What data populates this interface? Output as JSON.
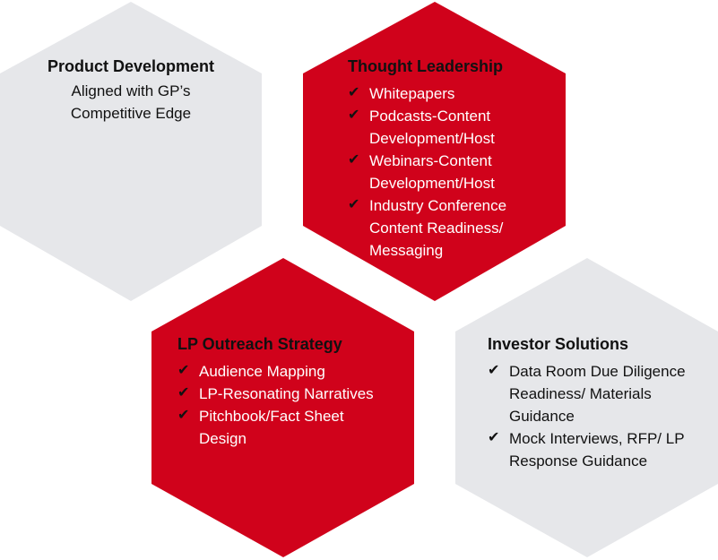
{
  "colors": {
    "accent_red": "#d0021b",
    "neutral_gray": "#e6e7ea",
    "text_dark": "#111111",
    "text_light": "#ffffff"
  },
  "icons": {
    "check": "check-icon"
  },
  "product_development": {
    "title": "Product Development",
    "subtitle_line1": "Aligned with GP’s",
    "subtitle_line2": "Competitive Edge"
  },
  "thought_leadership": {
    "title": "Thought Leadership",
    "items": [
      "Whitepapers",
      "Podcasts-Content Development/Host",
      "Webinars-Content Development/Host",
      "Industry Conference Content Readiness/ Messaging"
    ]
  },
  "lp_outreach": {
    "title": "LP Outreach Strategy",
    "items": [
      "Audience Mapping",
      "LP-Resonating Narratives",
      "Pitchbook/Fact Sheet Design"
    ]
  },
  "investor_solutions": {
    "title": "Investor Solutions",
    "items": [
      "Data Room Due Diligence Readiness/ Materials Guidance",
      "Mock Interviews, RFP/ LP Response Guidance"
    ]
  }
}
